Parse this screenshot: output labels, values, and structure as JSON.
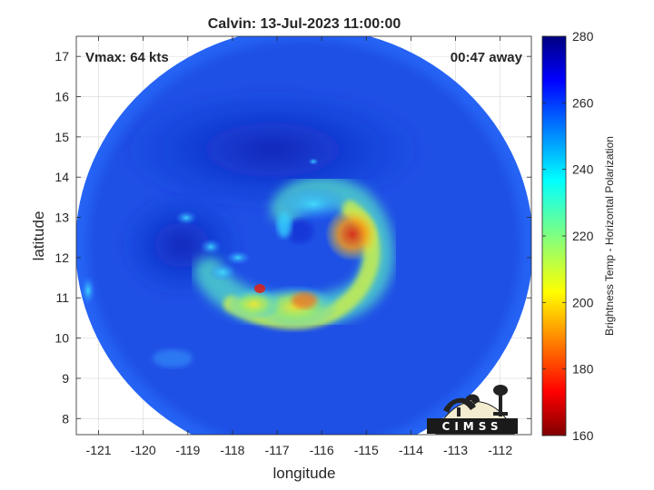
{
  "title": "Calvin: 13-Jul-2023 11:00:00",
  "annotations": {
    "vmax": "Vmax: 64 kts",
    "time_away": "00:47 away"
  },
  "logo_text": "CIMSS",
  "chart_data": {
    "type": "heatmap",
    "title": "Calvin: 13-Jul-2023 11:00:00",
    "xlabel": "longitude",
    "ylabel": "latitude",
    "xlim": [
      -121.5,
      -111.3
    ],
    "ylim": [
      7.6,
      17.5
    ],
    "x_ticks": [
      -121,
      -120,
      -119,
      -118,
      -117,
      -116,
      -115,
      -114,
      -113,
      -112
    ],
    "x_tick_labels": [
      "-121",
      "-120",
      "-119",
      "-118",
      "-117",
      "-116",
      "-115",
      "-114",
      "-113",
      "-112"
    ],
    "y_ticks": [
      8,
      9,
      10,
      11,
      12,
      13,
      14,
      15,
      16,
      17
    ],
    "y_tick_labels": [
      "8",
      "9",
      "10",
      "11",
      "12",
      "13",
      "14",
      "15",
      "16",
      "17"
    ],
    "grid": true,
    "colorbar": {
      "label": "Brightness Temp - Horizontal Polarization",
      "range": [
        160,
        280
      ],
      "ticks": [
        160,
        180,
        200,
        220,
        240,
        260,
        280
      ],
      "tick_labels": [
        "160",
        "180",
        "200",
        "220",
        "240",
        "260",
        "280"
      ],
      "colormap": "jet"
    },
    "swath": {
      "center": [
        -116.4,
        12.3
      ],
      "radius_deg_lon": 5.7
    },
    "storm_center": [
      -116.2,
      12.4
    ],
    "features": [
      {
        "name": "eyewall-warm-core",
        "lon": -115.3,
        "lat": 12.6,
        "value": 185
      },
      {
        "name": "southern-rainband",
        "lon": -116.2,
        "lat": 10.9,
        "value": 195
      },
      {
        "name": "western-convection",
        "lon": -117.3,
        "lat": 11.2,
        "value": 180
      }
    ],
    "background_value": 268
  },
  "colors": {
    "background": "#ffffff",
    "axes_text": "#262626",
    "grid": "#dddddd",
    "ocean_brightness": "#1f50e6"
  }
}
